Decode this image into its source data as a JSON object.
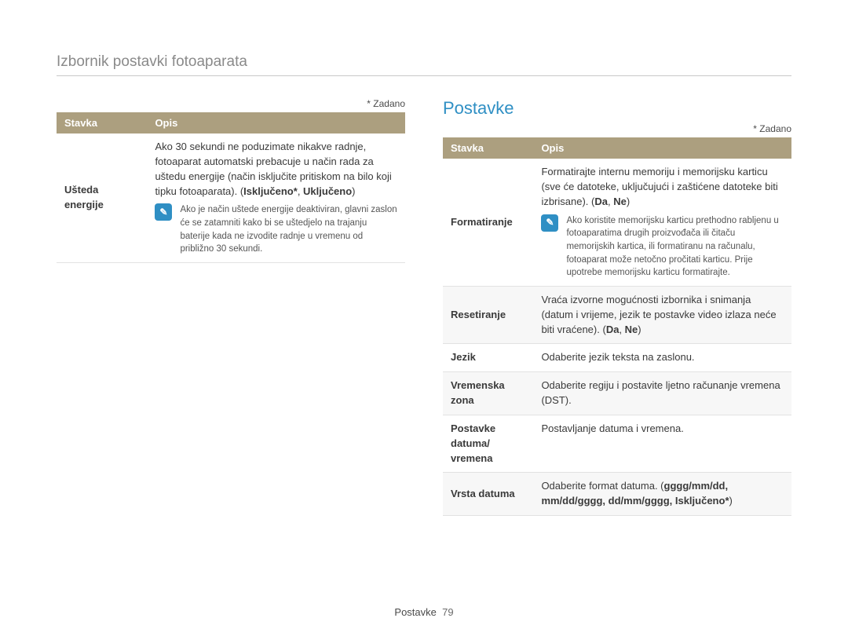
{
  "header": {
    "title": "Izbornik postavki fotoaparata"
  },
  "default_note": "* Zadano",
  "table_headers": {
    "stavka": "Stavka",
    "opis": "Opis"
  },
  "left": {
    "rows": [
      {
        "label": "Ušteda energije",
        "desc_lead": "Ako 30 sekundi ne poduzimate nikakve radnje, fotoaparat automatski prebacuje u način rada za uštedu energije (način isključite pritiskom na bilo koji tipku fotoaparata). (",
        "opt1": "Isključeno*",
        "sep": ", ",
        "opt2": "Uključeno",
        "desc_tail": ")",
        "note": "Ako je način uštede energije deaktiviran, glavni zaslon će se zatamniti kako bi se uštedjelo na trajanju baterije kada ne izvodite radnje u vremenu od približno 30 sekundi."
      }
    ]
  },
  "right": {
    "section_title": "Postavke",
    "rows": {
      "format": {
        "label": "Formatiranje",
        "desc_lead": "Formatirajte internu memoriju i memorijsku karticu (sve će datoteke, uključujući i zaštićene datoteke biti izbrisane). (",
        "opt1": "Da",
        "sep": ", ",
        "opt2": "Ne",
        "desc_tail": ")",
        "note": "Ako koristite memorijsku karticu prethodno rabljenu u fotoaparatima drugih proizvođača ili čitaču memorijskih kartica, ili formatiranu na računalu, fotoaparat može netočno pročitati karticu. Prije upotrebe memorijsku karticu formatirajte."
      },
      "reset": {
        "label": "Resetiranje",
        "desc_lead": "Vraća izvorne mogućnosti izbornika i snimanja (datum i vrijeme, jezik te postavke video izlaza neće biti vraćene). (",
        "opt1": "Da",
        "sep": ", ",
        "opt2": "Ne",
        "desc_tail": ")"
      },
      "lang": {
        "label": "Jezik",
        "desc": "Odaberite jezik teksta na zaslonu."
      },
      "tz": {
        "label": "Vremenska zona",
        "desc": "Odaberite regiju i postavite ljetno računanje vremena (DST)."
      },
      "dt": {
        "label": "Postavke datuma/ vremena",
        "desc": "Postavljanje datuma i vremena."
      },
      "df": {
        "label": "Vrsta datuma",
        "desc_lead": "Odaberite format datuma. (",
        "opts": "gggg/mm/dd, mm/dd/gggg, dd/mm/gggg, Isključeno*",
        "desc_tail": ")"
      }
    }
  },
  "footer": {
    "label": "Postavke",
    "page": "79"
  },
  "note_icon_glyph": "✎"
}
